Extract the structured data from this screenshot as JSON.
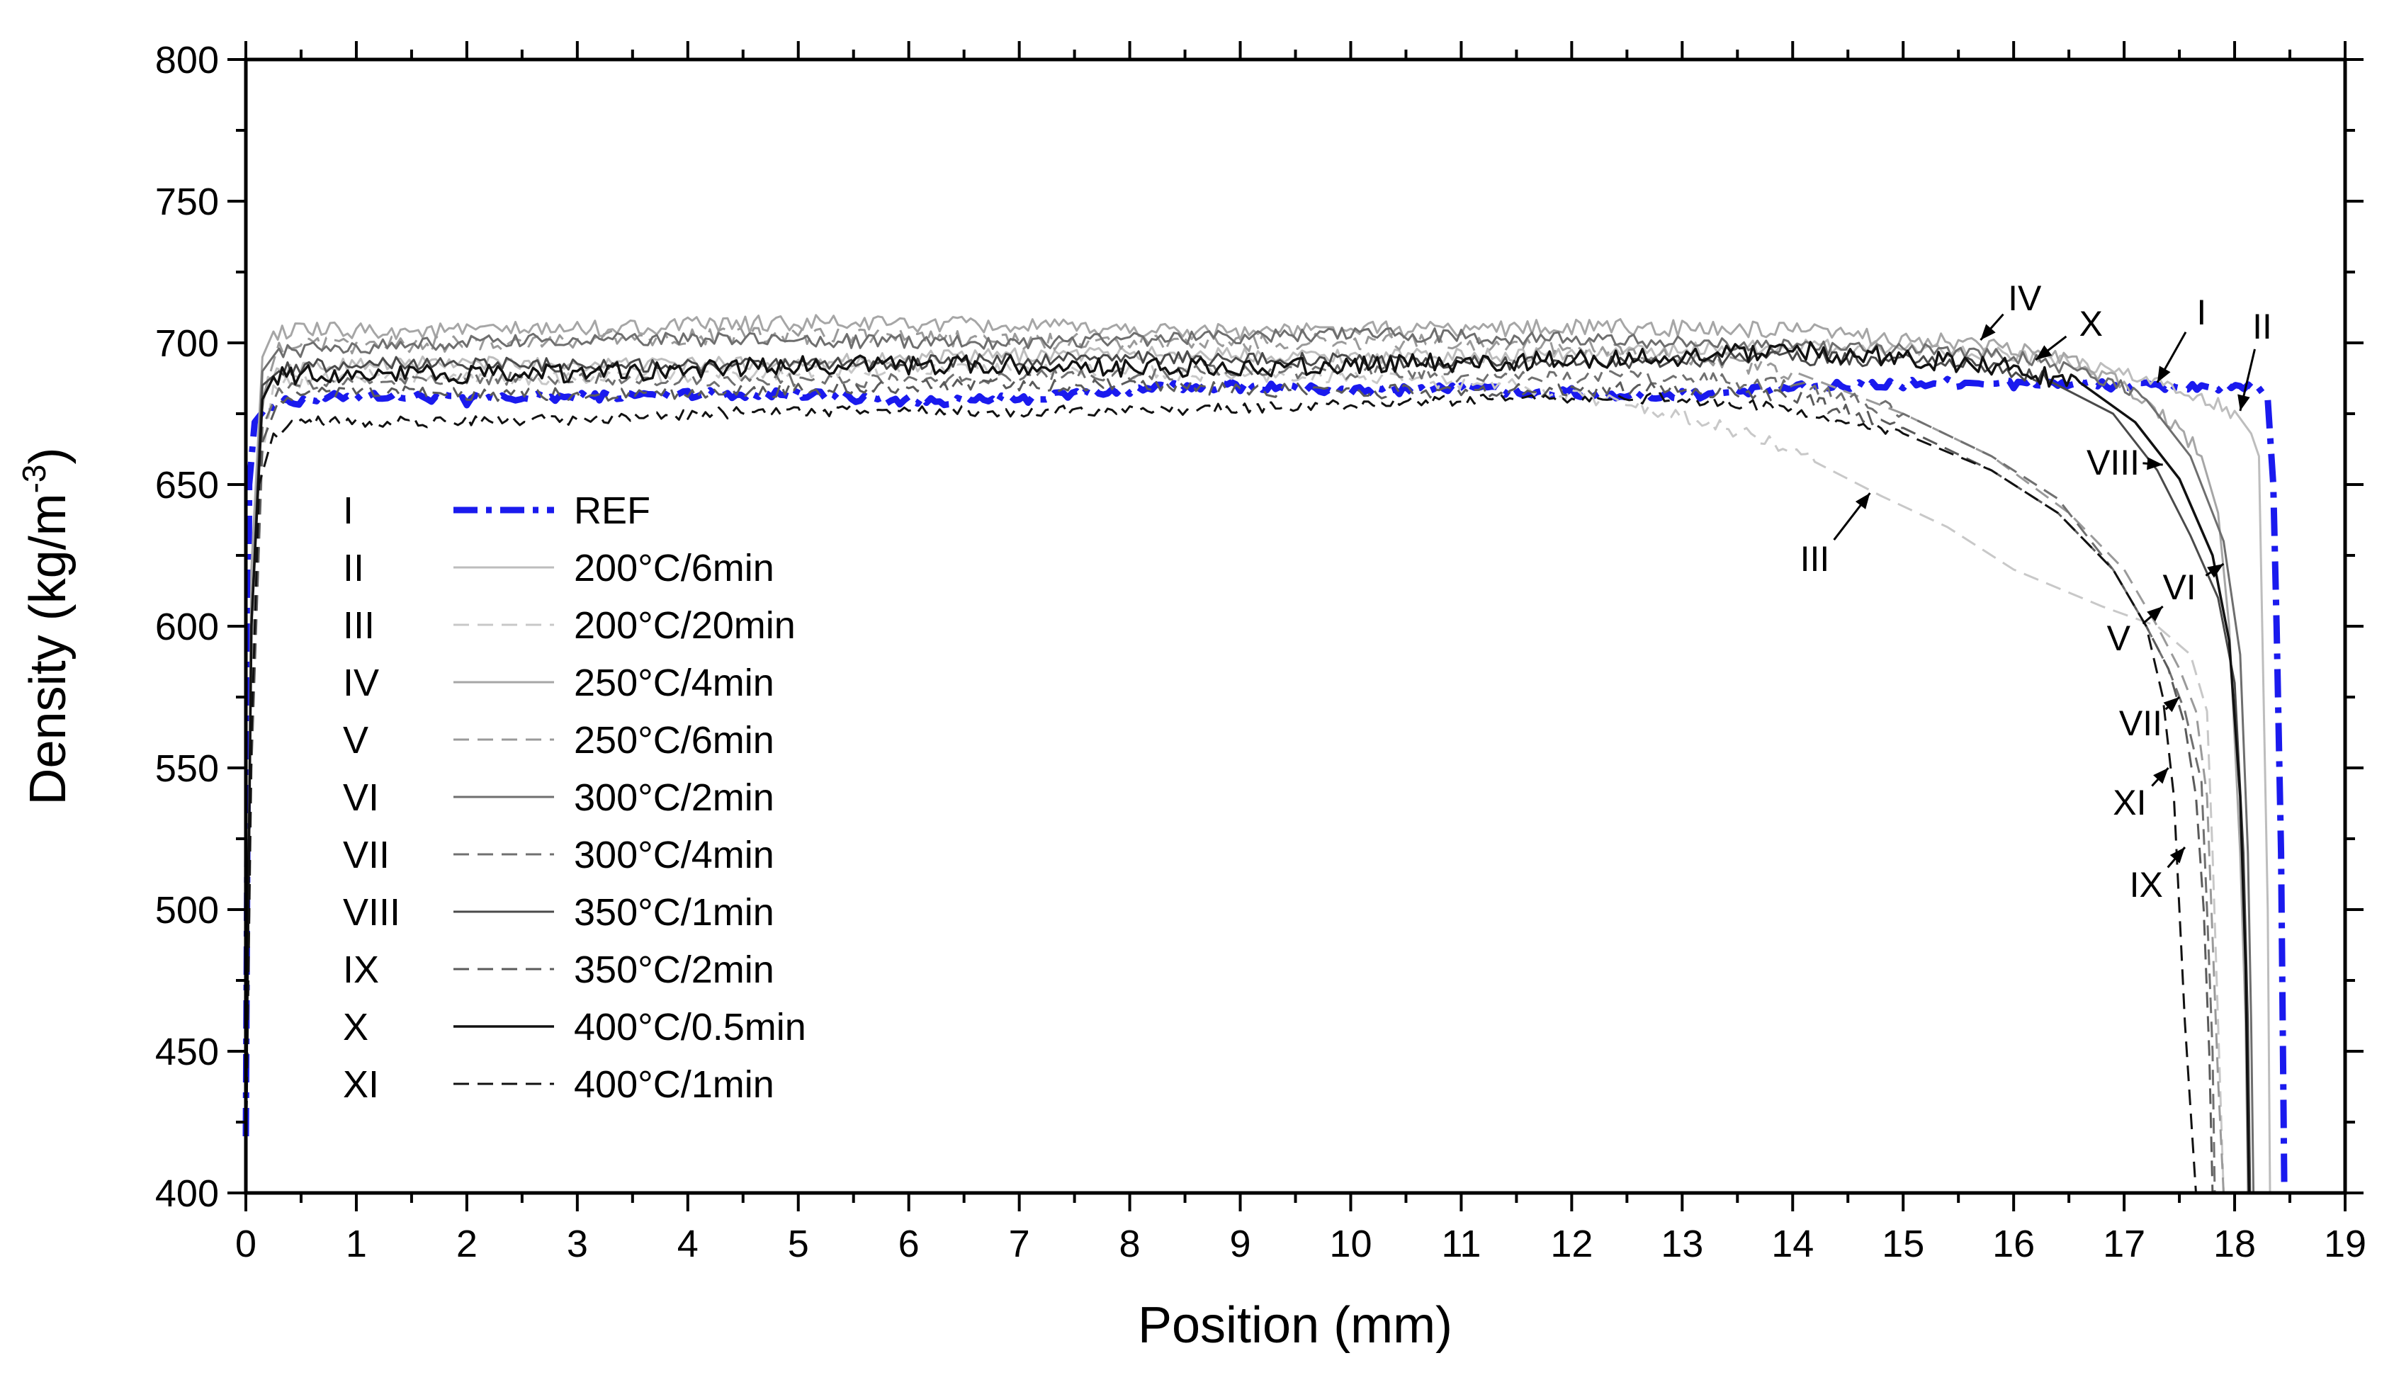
{
  "chart_data": {
    "type": "line",
    "title": "",
    "xlabel": "Position (mm)",
    "ylabel_main": "Density (kg/m",
    "ylabel_exp": "-3",
    "ylabel_close": ")",
    "xlim": [
      0,
      19
    ],
    "ylim": [
      400,
      800
    ],
    "xticks": [
      0,
      1,
      2,
      3,
      4,
      5,
      6,
      7,
      8,
      9,
      10,
      11,
      12,
      13,
      14,
      15,
      16,
      17,
      18,
      19
    ],
    "yticks": [
      400,
      450,
      500,
      550,
      600,
      650,
      700,
      750,
      800
    ],
    "series": [
      {
        "id": "I",
        "name": "REF",
        "color": "#1a1aee",
        "dash": "dashdot",
        "width": 9,
        "level": 684,
        "noise": 1.5,
        "wave": 4,
        "points": [
          [
            0,
            420
          ],
          [
            0.03,
            650
          ],
          [
            0.08,
            672
          ],
          [
            0.2,
            678
          ],
          [
            1,
            680
          ],
          [
            2,
            678
          ],
          [
            3,
            680
          ],
          [
            4,
            683
          ],
          [
            5,
            684
          ],
          [
            6,
            681
          ],
          [
            7,
            680
          ],
          [
            8,
            682
          ],
          [
            9,
            683
          ],
          [
            10,
            682
          ],
          [
            11,
            685
          ],
          [
            12,
            684
          ],
          [
            13,
            683
          ],
          [
            14,
            684
          ],
          [
            15,
            684
          ],
          [
            16,
            684
          ],
          [
            17,
            684
          ],
          [
            17.7,
            685
          ],
          [
            18.2,
            685
          ],
          [
            18.3,
            680
          ],
          [
            18.35,
            650
          ],
          [
            18.38,
            600
          ],
          [
            18.42,
            520
          ],
          [
            18.45,
            400
          ]
        ]
      },
      {
        "id": "II",
        "name": "200°C/6min",
        "color": "#bdbdbd",
        "dash": "solid",
        "width": 3,
        "level": 692,
        "noise": 2.5,
        "wave": 2,
        "points": [
          [
            0,
            420
          ],
          [
            0.05,
            600
          ],
          [
            0.12,
            670
          ],
          [
            0.2,
            688
          ],
          [
            1,
            692
          ],
          [
            5,
            694
          ],
          [
            10,
            696
          ],
          [
            14,
            698
          ],
          [
            15.5,
            697
          ],
          [
            16.5,
            693
          ],
          [
            17.2,
            688
          ],
          [
            17.7,
            682
          ],
          [
            18.0,
            676
          ],
          [
            18.15,
            668
          ],
          [
            18.22,
            660
          ],
          [
            18.25,
            600
          ],
          [
            18.3,
            500
          ],
          [
            18.32,
            400
          ]
        ]
      },
      {
        "id": "III",
        "name": "200°C/20min",
        "color": "#c8c8c8",
        "dash": "dashed",
        "width": 3,
        "level": 688,
        "noise": 2.5,
        "wave": 2,
        "points": [
          [
            0,
            410
          ],
          [
            0.05,
            560
          ],
          [
            0.15,
            660
          ],
          [
            0.25,
            685
          ],
          [
            1,
            688
          ],
          [
            6,
            690
          ],
          [
            10,
            689
          ],
          [
            11.5,
            685
          ],
          [
            12.5,
            678
          ],
          [
            13.5,
            668
          ],
          [
            14.2,
            658
          ],
          [
            14.8,
            646
          ],
          [
            15.4,
            635
          ],
          [
            16.0,
            620
          ],
          [
            16.8,
            607
          ],
          [
            17.3,
            600
          ],
          [
            17.6,
            590
          ],
          [
            17.75,
            570
          ],
          [
            17.8,
            520
          ],
          [
            17.85,
            460
          ],
          [
            17.9,
            400
          ]
        ]
      },
      {
        "id": "IV",
        "name": "250°C/4min",
        "color": "#a6a6a6",
        "dash": "solid",
        "width": 3,
        "level": 705,
        "noise": 3,
        "wave": 2,
        "points": [
          [
            0,
            420
          ],
          [
            0.05,
            620
          ],
          [
            0.15,
            695
          ],
          [
            0.25,
            704
          ],
          [
            1,
            705
          ],
          [
            5,
            706
          ],
          [
            10,
            705
          ],
          [
            14,
            704
          ],
          [
            15.5,
            701
          ],
          [
            16.3,
            697
          ],
          [
            16.8,
            690
          ],
          [
            17.2,
            680
          ],
          [
            17.5,
            670
          ],
          [
            17.7,
            660
          ],
          [
            17.85,
            640
          ],
          [
            17.95,
            600
          ],
          [
            18.05,
            520
          ],
          [
            18.1,
            460
          ],
          [
            18.12,
            400
          ]
        ]
      },
      {
        "id": "V",
        "name": "250°C/6min",
        "color": "#9a9a9a",
        "dash": "dashed",
        "width": 3,
        "level": 700,
        "noise": 3,
        "wave": 2,
        "points": [
          [
            0,
            410
          ],
          [
            0.05,
            580
          ],
          [
            0.15,
            680
          ],
          [
            0.3,
            700
          ],
          [
            1,
            700
          ],
          [
            6,
            702
          ],
          [
            10,
            700
          ],
          [
            12,
            698
          ],
          [
            13,
            695
          ],
          [
            14,
            690
          ],
          [
            15,
            675
          ],
          [
            15.8,
            660
          ],
          [
            16.5,
            640
          ],
          [
            17.0,
            620
          ],
          [
            17.3,
            600
          ],
          [
            17.5,
            585
          ],
          [
            17.65,
            570
          ],
          [
            17.75,
            540
          ],
          [
            17.8,
            490
          ],
          [
            17.85,
            440
          ],
          [
            17.9,
            400
          ]
        ]
      },
      {
        "id": "VI",
        "name": "300°C/2min",
        "color": "#6e6e6e",
        "dash": "solid",
        "width": 3,
        "level": 699,
        "noise": 2.5,
        "wave": 2,
        "points": [
          [
            0,
            420
          ],
          [
            0.05,
            600
          ],
          [
            0.15,
            690
          ],
          [
            0.3,
            698
          ],
          [
            1,
            699
          ],
          [
            5,
            701
          ],
          [
            10,
            702
          ],
          [
            13,
            701
          ],
          [
            15,
            698
          ],
          [
            16,
            695
          ],
          [
            16.7,
            688
          ],
          [
            17.2,
            680
          ],
          [
            17.6,
            660
          ],
          [
            17.9,
            630
          ],
          [
            18.05,
            590
          ],
          [
            18.12,
            520
          ],
          [
            18.15,
            460
          ],
          [
            18.17,
            400
          ]
        ]
      },
      {
        "id": "VII",
        "name": "300°C/4min",
        "color": "#707070",
        "dash": "dashed",
        "width": 3,
        "level": 686,
        "noise": 2.5,
        "wave": 2,
        "points": [
          [
            0,
            410
          ],
          [
            0.05,
            560
          ],
          [
            0.15,
            670
          ],
          [
            0.3,
            684
          ],
          [
            1,
            686
          ],
          [
            6,
            688
          ],
          [
            10,
            689
          ],
          [
            13,
            689
          ],
          [
            14,
            685
          ],
          [
            15,
            675
          ],
          [
            15.8,
            660
          ],
          [
            16.4,
            645
          ],
          [
            16.9,
            620
          ],
          [
            17.2,
            600
          ],
          [
            17.4,
            585
          ],
          [
            17.55,
            570
          ],
          [
            17.7,
            545
          ],
          [
            17.75,
            500
          ],
          [
            17.8,
            450
          ],
          [
            17.82,
            400
          ]
        ]
      },
      {
        "id": "VIII",
        "name": "350°C/1min",
        "color": "#4a4a4a",
        "dash": "solid",
        "width": 3,
        "level": 692,
        "noise": 2.5,
        "wave": 2,
        "points": [
          [
            0,
            420
          ],
          [
            0.05,
            600
          ],
          [
            0.15,
            685
          ],
          [
            0.3,
            690
          ],
          [
            1,
            692
          ],
          [
            5,
            693
          ],
          [
            10,
            694
          ],
          [
            14,
            694
          ],
          [
            15.5,
            692
          ],
          [
            16.3,
            687
          ],
          [
            16.9,
            675
          ],
          [
            17.3,
            655
          ],
          [
            17.6,
            632
          ],
          [
            17.85,
            610
          ],
          [
            18.0,
            580
          ],
          [
            18.08,
            520
          ],
          [
            18.12,
            460
          ],
          [
            18.14,
            400
          ]
        ]
      },
      {
        "id": "IX",
        "name": "350°C/2min",
        "color": "#5a5a5a",
        "dash": "dashed",
        "width": 3,
        "level": 682,
        "noise": 2.5,
        "wave": 2,
        "points": [
          [
            0,
            410
          ],
          [
            0.05,
            550
          ],
          [
            0.15,
            665
          ],
          [
            0.3,
            680
          ],
          [
            1,
            682
          ],
          [
            6,
            684
          ],
          [
            10,
            684
          ],
          [
            13,
            683
          ],
          [
            14,
            680
          ],
          [
            15,
            670
          ],
          [
            15.8,
            655
          ],
          [
            16.4,
            640
          ],
          [
            16.9,
            620
          ],
          [
            17.2,
            600
          ],
          [
            17.4,
            585
          ],
          [
            17.55,
            565
          ],
          [
            17.65,
            540
          ],
          [
            17.72,
            500
          ],
          [
            17.77,
            450
          ],
          [
            17.8,
            400
          ]
        ]
      },
      {
        "id": "X",
        "name": "400°C/0.5min",
        "color": "#111111",
        "dash": "solid",
        "width": 3.5,
        "level": 690,
        "noise": 3.5,
        "wave": 2,
        "points": [
          [
            0,
            420
          ],
          [
            0.05,
            600
          ],
          [
            0.15,
            680
          ],
          [
            0.25,
            688
          ],
          [
            1,
            690
          ],
          [
            3,
            690
          ],
          [
            5,
            691
          ],
          [
            8,
            692
          ],
          [
            11,
            693
          ],
          [
            13,
            694
          ],
          [
            14,
            697
          ],
          [
            15,
            695
          ],
          [
            16,
            692
          ],
          [
            16.6,
            686
          ],
          [
            17.1,
            672
          ],
          [
            17.5,
            652
          ],
          [
            17.8,
            625
          ],
          [
            17.95,
            595
          ],
          [
            18.05,
            540
          ],
          [
            18.1,
            480
          ],
          [
            18.13,
            400
          ]
        ]
      },
      {
        "id": "XI",
        "name": "400°C/1min",
        "color": "#111111",
        "dash": "dashed",
        "width": 3,
        "level": 675,
        "noise": 2,
        "wave": 2,
        "points": [
          [
            0,
            410
          ],
          [
            0.05,
            560
          ],
          [
            0.12,
            650
          ],
          [
            0.25,
            668
          ],
          [
            0.5,
            673
          ],
          [
            1,
            673
          ],
          [
            3,
            673
          ],
          [
            6,
            676
          ],
          [
            10,
            678
          ],
          [
            13,
            680
          ],
          [
            14,
            677
          ],
          [
            15,
            668
          ],
          [
            15.8,
            655
          ],
          [
            16.4,
            640
          ],
          [
            16.9,
            620
          ],
          [
            17.2,
            600
          ],
          [
            17.35,
            575
          ],
          [
            17.45,
            540
          ],
          [
            17.5,
            500
          ],
          [
            17.55,
            460
          ],
          [
            17.6,
            430
          ],
          [
            17.65,
            400
          ]
        ]
      }
    ],
    "legend": {
      "placement": "left-middle",
      "ids": [
        "I",
        "II",
        "III",
        "IV",
        "V",
        "VI",
        "VII",
        "VIII",
        "IX",
        "X",
        "XI"
      ],
      "labels": [
        "REF",
        "200°C/6min",
        "200°C/20min",
        "250°C/4min",
        "250°C/6min",
        "300°C/2min",
        "300°C/4min",
        "350°C/1min",
        "350°C/2min",
        "400°C/0.5min",
        "400°C/1min"
      ]
    },
    "annotations": [
      {
        "text": "IV",
        "label_at": [
          16.1,
          716
        ],
        "arrow_to": [
          15.7,
          701
        ]
      },
      {
        "text": "X",
        "label_at": [
          16.7,
          707
        ],
        "arrow_to": [
          16.2,
          694
        ]
      },
      {
        "text": "I",
        "label_at": [
          17.7,
          711
        ],
        "arrow_to": [
          17.3,
          686
        ]
      },
      {
        "text": "II",
        "label_at": [
          18.25,
          706
        ],
        "arrow_to": [
          18.05,
          676
        ]
      },
      {
        "text": "VIII",
        "label_at": [
          16.9,
          658
        ],
        "arrow_to": [
          17.35,
          657
        ]
      },
      {
        "text": "III",
        "label_at": [
          14.2,
          624
        ],
        "arrow_to": [
          14.7,
          647
        ]
      },
      {
        "text": "VI",
        "label_at": [
          17.5,
          614
        ],
        "arrow_to": [
          17.9,
          622
        ]
      },
      {
        "text": "V",
        "label_at": [
          16.95,
          596
        ],
        "arrow_to": [
          17.35,
          607
        ]
      },
      {
        "text": "VII",
        "label_at": [
          17.15,
          566
        ],
        "arrow_to": [
          17.5,
          575
        ]
      },
      {
        "text": "XI",
        "label_at": [
          17.05,
          538
        ],
        "arrow_to": [
          17.4,
          550
        ]
      },
      {
        "text": "IX",
        "label_at": [
          17.2,
          509
        ],
        "arrow_to": [
          17.55,
          522
        ]
      }
    ]
  }
}
